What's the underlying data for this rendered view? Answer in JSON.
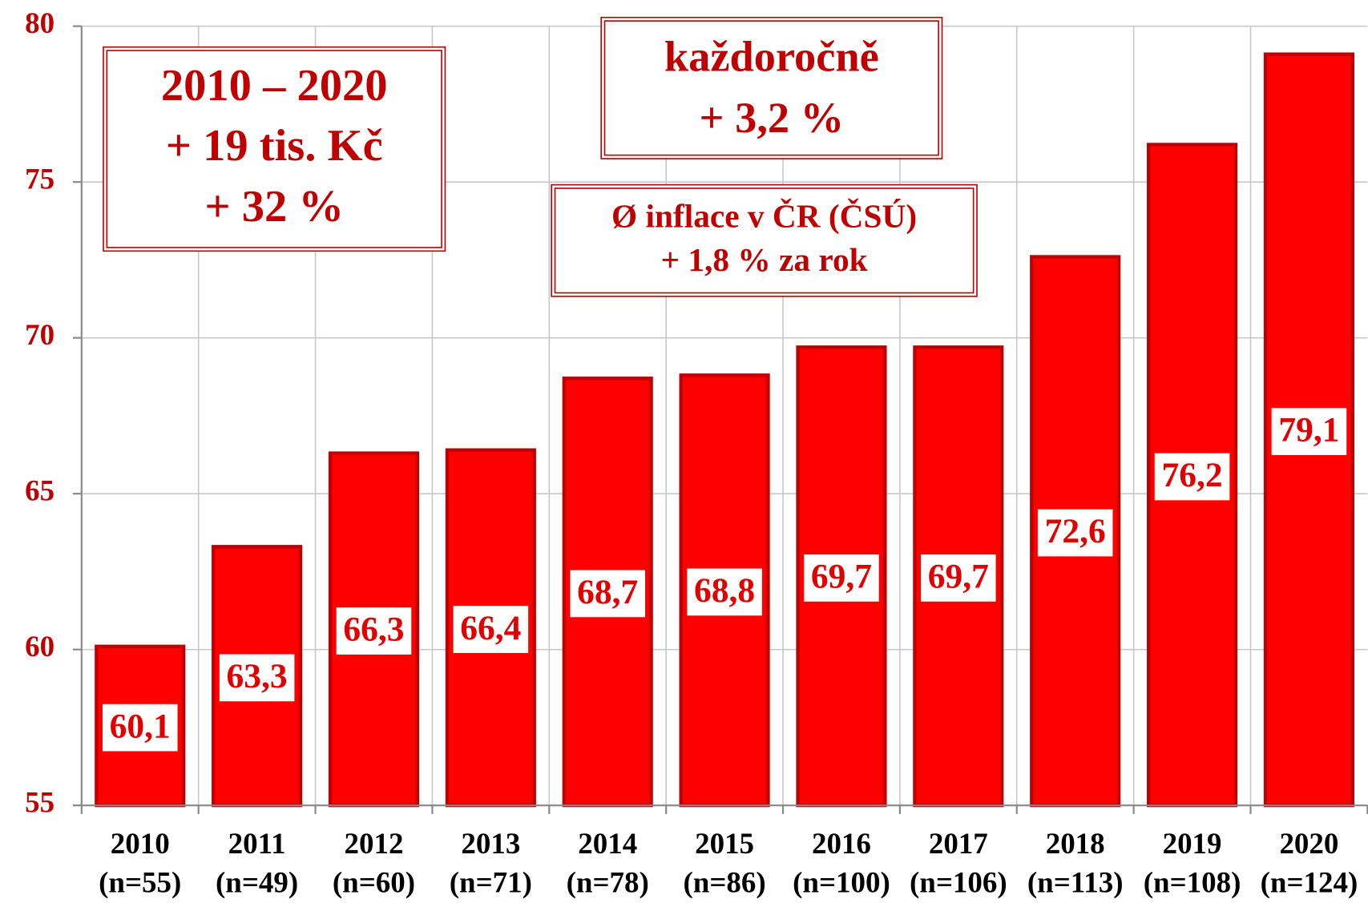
{
  "chart_data": {
    "type": "bar",
    "categories": [
      "2010",
      "2011",
      "2012",
      "2013",
      "2014",
      "2015",
      "2016",
      "2017",
      "2018",
      "2019",
      "2020"
    ],
    "sample_sizes": [
      "(n=55)",
      "(n=49)",
      "(n=60)",
      "(n=71)",
      "(n=78)",
      "(n=86)",
      "(n=100)",
      "(n=106)",
      "(n=113)",
      "(n=108)",
      "(n=124)"
    ],
    "values": [
      60.1,
      63.3,
      66.3,
      66.4,
      68.7,
      68.8,
      69.7,
      69.7,
      72.6,
      76.2,
      79.1
    ],
    "value_labels": [
      "60,1",
      "63,3",
      "66,3",
      "66,4",
      "68,7",
      "68,8",
      "69,7",
      "69,7",
      "72,6",
      "76,2",
      "79,1"
    ],
    "color": "#ff0000",
    "edge_color": "#c00000",
    "ylim": [
      55,
      80
    ],
    "yticks": [
      55,
      60,
      65,
      70,
      75,
      80
    ],
    "grid": true,
    "annotations": [
      [
        "2010 – 2020",
        "+ 19 tis. Kč",
        "+ 32 %"
      ],
      [
        "každoročně",
        "+ 3,2 %"
      ],
      [
        "Ø inflace v ČR (ČSÚ)",
        "+ 1,8 % za rok"
      ]
    ]
  }
}
